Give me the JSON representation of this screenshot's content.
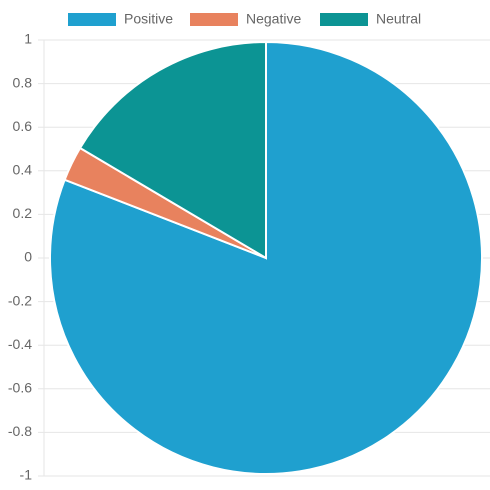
{
  "chart_data": {
    "type": "pie",
    "categories": [
      "Positive",
      "Negative",
      "Neutral"
    ],
    "values": [
      80.9,
      2.6,
      16.5
    ],
    "colors": [
      "#1fa0cf",
      "#e8825e",
      "#0c9494"
    ],
    "ylim": [
      -1,
      1
    ],
    "yticks": [
      1,
      0.8,
      0.6,
      0.4,
      0.2,
      0,
      -0.2,
      -0.4,
      -0.6,
      -0.8,
      -1
    ],
    "grid": true
  }
}
